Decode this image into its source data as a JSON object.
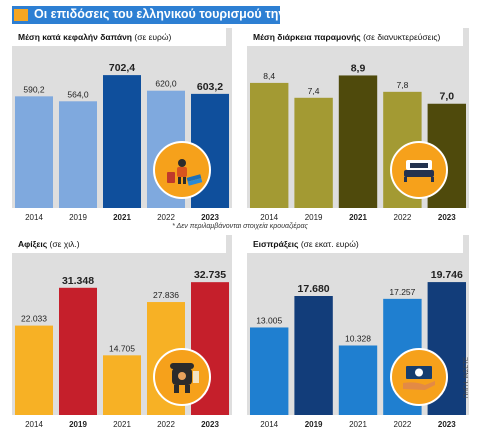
{
  "title": "Οι επιδόσεις του ελληνικού τουρισμού την τελευταία δεκαετία",
  "footnote": "* Δεν περιλαμβάνονται στοιχεία κρουαζιέρας",
  "source": "ΠΗΓΗ: ΙΝΣΕΤΕ",
  "chart_data": [
    {
      "type": "bar",
      "title": "Μέση κατά κεφαλήν δαπάνη",
      "unit": "(σε ευρώ)",
      "categories": [
        "2014",
        "2019",
        "2021",
        "2022",
        "2023"
      ],
      "values": [
        590.2,
        564.0,
        702.4,
        620.0,
        603.2
      ],
      "value_labels": [
        "590,2",
        "564,0",
        "702,4",
        "620,0",
        "603,2"
      ],
      "ylim": [
        0,
        740
      ],
      "bold": [
        false,
        false,
        true,
        false,
        true
      ],
      "colors": [
        "#7fa9de",
        "#7fa9de",
        "#0f4f9c",
        "#7fa9de",
        "#0f4f9c"
      ],
      "icon": "tourist-luggage-icon"
    },
    {
      "type": "bar",
      "title": "Μέση διάρκεια παραμονής",
      "unit": "(σε διανυκτερεύσεις)",
      "categories": [
        "2014",
        "2019",
        "2021",
        "2022",
        "2023"
      ],
      "values": [
        8.4,
        7.4,
        8.9,
        7.8,
        7.0
      ],
      "value_labels": [
        "8,4",
        "7,4",
        "8,9",
        "7,8",
        "7,0"
      ],
      "ylim": [
        0,
        9.4
      ],
      "bold": [
        false,
        false,
        true,
        false,
        true
      ],
      "colors": [
        "#a39a33",
        "#a39a33",
        "#4f4a0c",
        "#a39a33",
        "#4f4a0c"
      ],
      "icon": "hotel-bed-icon"
    },
    {
      "type": "bar",
      "title": "Αφίξεις",
      "unit": "(σε χιλ.)",
      "categories": [
        "2014",
        "2019",
        "2021",
        "2022",
        "2023"
      ],
      "values": [
        22033,
        31348,
        14705,
        27836,
        32735
      ],
      "value_labels": [
        "22.033",
        "31.348",
        "14.705",
        "27.836",
        "32.735"
      ],
      "ylim": [
        0,
        34500
      ],
      "bold": [
        false,
        true,
        false,
        false,
        true
      ],
      "colors": [
        "#f7b125",
        "#c51f2b",
        "#f7b125",
        "#f7b125",
        "#c51f2b"
      ],
      "icon": "backpacker-icon"
    },
    {
      "type": "bar",
      "title": "Εισπράξεις",
      "unit": "(σε εκατ. ευρώ)",
      "categories": [
        "2014",
        "2019",
        "2021",
        "2022",
        "2023"
      ],
      "values": [
        13005,
        17680,
        10328,
        17257,
        19746
      ],
      "value_labels": [
        "13.005",
        "17.680",
        "10.328",
        "17.257",
        "19.746"
      ],
      "ylim": [
        0,
        20800
      ],
      "bold": [
        false,
        true,
        false,
        false,
        true
      ],
      "colors": [
        "#1f7fd0",
        "#123d7a",
        "#1f7fd0",
        "#1f7fd0",
        "#123d7a"
      ],
      "icon": "money-hand-icon"
    }
  ]
}
